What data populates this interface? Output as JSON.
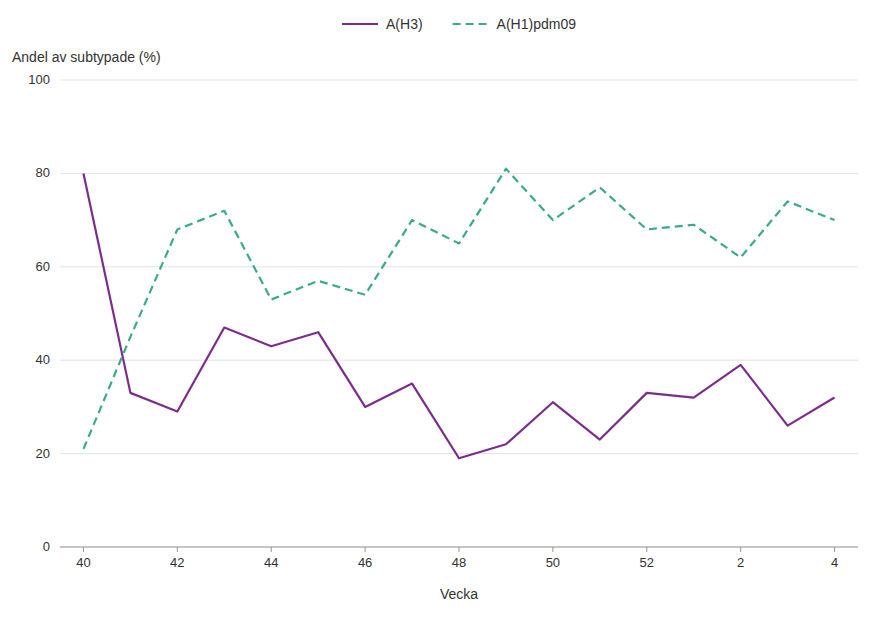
{
  "chart_data": {
    "type": "line",
    "xlabel": "Vecka",
    "ylabel": "Andel av subtypade (%)",
    "categories": [
      "40",
      null,
      "42",
      null,
      "44",
      null,
      "46",
      null,
      "48",
      null,
      "50",
      null,
      "52",
      null,
      "2",
      null,
      "4"
    ],
    "series": [
      {
        "name": "A(H3)",
        "color": "#7B2D8B",
        "line_style": "solid",
        "values": [
          80,
          33,
          29,
          47,
          43,
          46,
          30,
          35,
          19,
          22,
          31,
          23,
          33,
          32,
          39,
          26,
          32
        ]
      },
      {
        "name": "A(H1)pdm09",
        "color": "#3aaa8a",
        "line_style": "dashed",
        "values": [
          21,
          45,
          68,
          72,
          53,
          57,
          54,
          70,
          65,
          81,
          70,
          77,
          68,
          69,
          62,
          74,
          70
        ]
      }
    ],
    "ylim": [
      0,
      100
    ],
    "yticks": [
      0,
      20,
      40,
      60,
      80,
      100
    ],
    "grid": true,
    "legend": "top"
  }
}
